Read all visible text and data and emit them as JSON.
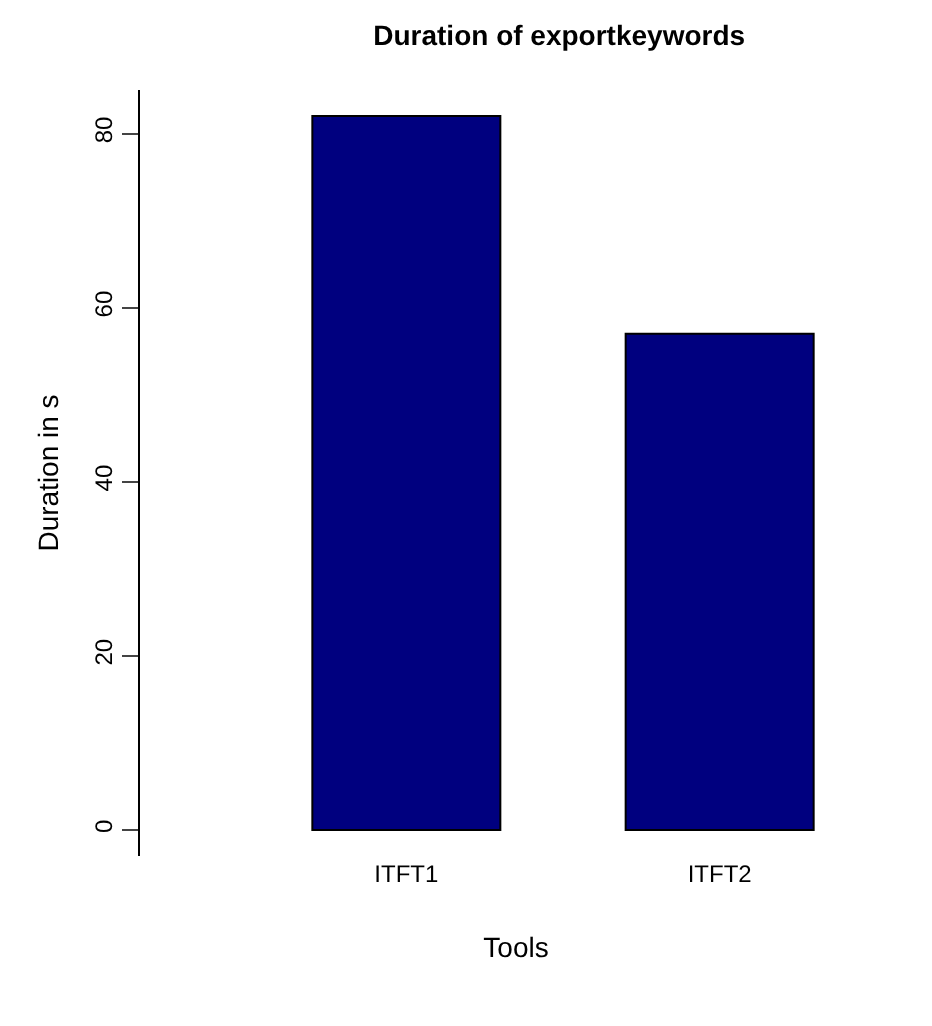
{
  "chart_data": {
    "type": "bar",
    "title": "Duration of exportkeywords",
    "xlabel": "Tools",
    "ylabel": "Duration in s",
    "categories": [
      "ITFT1",
      "ITFT2"
    ],
    "values": [
      82,
      57
    ],
    "color": "#00007f",
    "ylim": [
      -3,
      85
    ],
    "yticks": [
      0,
      20,
      40,
      60,
      80
    ]
  }
}
